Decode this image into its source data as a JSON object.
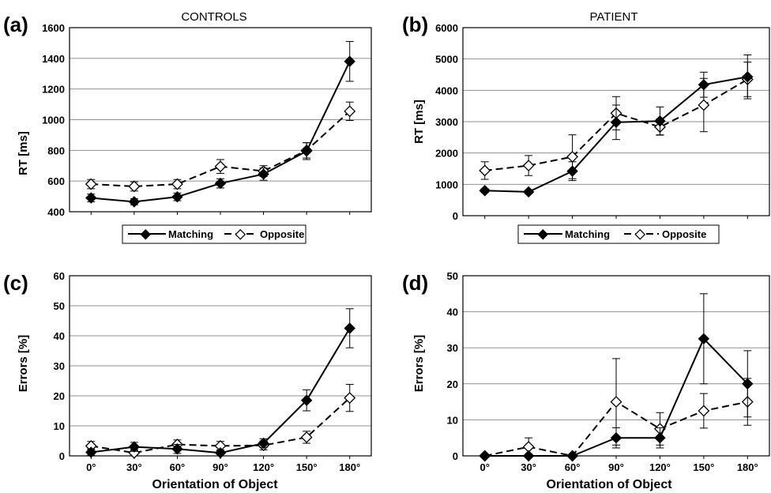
{
  "chart_data": [
    {
      "panel": "(a)",
      "type": "line",
      "title": "CONTROLS",
      "ylabel": "RT [ms]",
      "xlabel": "",
      "ylim": [
        400,
        1600
      ],
      "yticks": [
        "400",
        "600",
        "800",
        "1000",
        "1200",
        "1400",
        "1600"
      ],
      "grid": "horizontal",
      "legend": "below",
      "series": [
        {
          "name": "Matching",
          "values": [
            490,
            465,
            497,
            585,
            645,
            795,
            1380
          ],
          "errors": [
            25,
            20,
            25,
            30,
            40,
            55,
            130
          ]
        },
        {
          "name": "Opposite",
          "values": [
            580,
            565,
            580,
            695,
            665,
            800,
            1055
          ],
          "errors": [
            30,
            30,
            30,
            45,
            35,
            50,
            60
          ]
        }
      ]
    },
    {
      "panel": "(b)",
      "type": "line",
      "title": "PATIENT",
      "ylabel": "RT [ms]",
      "xlabel": "",
      "ylim": [
        0,
        6000
      ],
      "yticks": [
        "0",
        "1000",
        "2000",
        "3000",
        "4000",
        "5000",
        "6000"
      ],
      "grid": "horizontal",
      "legend": "below",
      "series": [
        {
          "name": "Matching",
          "values": [
            800,
            760,
            1420,
            2980,
            3020,
            4180,
            4430
          ],
          "errors": [
            60,
            60,
            300,
            550,
            450,
            400,
            700
          ]
        },
        {
          "name": "Opposite",
          "values": [
            1440,
            1600,
            1880,
            3270,
            2830,
            3530,
            4350
          ],
          "errors": [
            280,
            320,
            700,
            530,
            250,
            850,
            550
          ]
        }
      ]
    },
    {
      "panel": "(c)",
      "type": "line",
      "title": "",
      "ylabel": "Errors [%]",
      "xlabel": "Orientation of Object",
      "categories": [
        "0°",
        "30°",
        "60°",
        "90°",
        "120°",
        "150°",
        "180°"
      ],
      "ylim": [
        0,
        60
      ],
      "yticks": [
        "0",
        "10",
        "20",
        "30",
        "40",
        "50",
        "60"
      ],
      "grid": "horizontal",
      "series": [
        {
          "name": "Matching",
          "values": [
            1.2,
            3.0,
            2.3,
            1.0,
            4.2,
            18.5,
            42.5
          ],
          "errors": [
            1.0,
            1.5,
            1.5,
            1.0,
            1.5,
            3.5,
            6.5
          ]
        },
        {
          "name": "Opposite",
          "values": [
            3.3,
            1.0,
            3.8,
            3.3,
            3.5,
            6.2,
            19.3
          ],
          "errors": [
            1.5,
            1.0,
            1.5,
            1.5,
            1.5,
            2.0,
            4.5
          ]
        }
      ]
    },
    {
      "panel": "(d)",
      "type": "line",
      "title": "",
      "ylabel": "Errors [%]",
      "xlabel": "Orientation of Object",
      "categories": [
        "0°",
        "30°",
        "60°",
        "90°",
        "120°",
        "150°",
        "180°"
      ],
      "ylim": [
        0,
        50
      ],
      "yticks": [
        "0",
        "10",
        "20",
        "30",
        "40",
        "50"
      ],
      "grid": "horizontal",
      "series": [
        {
          "name": "Matching",
          "values": [
            0,
            0,
            0,
            5,
            5,
            32.5,
            20
          ],
          "errors": [
            0,
            0,
            0,
            2.8,
            2.8,
            12.5,
            9.2
          ]
        },
        {
          "name": "Opposite",
          "values": [
            0,
            2.5,
            0,
            15,
            7.5,
            12.5,
            15
          ],
          "errors": [
            0,
            2.5,
            0,
            12,
            4.5,
            4.8,
            6.5
          ]
        }
      ]
    }
  ],
  "legend": {
    "matching": "Matching",
    "opposite": "Opposite"
  }
}
